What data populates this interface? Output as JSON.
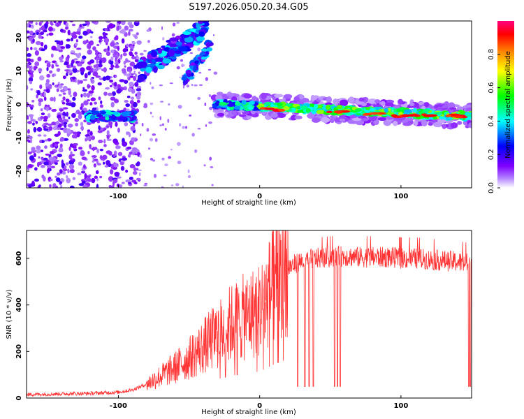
{
  "chart_data": [
    {
      "type": "heatmap",
      "title": "S197.2026.050.20.34.G05",
      "xlabel": "Height of straight line (km)",
      "ylabel": "Frequency (Hz)",
      "xlim": [
        -165,
        150
      ],
      "ylim": [
        -25,
        25
      ],
      "xticks": [
        -100,
        0,
        100
      ],
      "yticks": [
        -20,
        -10,
        0,
        10,
        20
      ],
      "xtick_labels": [
        "-100",
        "0",
        "100"
      ],
      "ytick_labels": [
        "-20",
        "-10",
        "0",
        "10",
        "20"
      ],
      "colorbar": {
        "label": "Normalized spectral amplitude",
        "range": [
          0,
          1
        ],
        "ticks": [
          0.0,
          0.2,
          0.4,
          0.6,
          0.8
        ],
        "tick_labels": [
          "0.0",
          "0.2",
          "0.4",
          "0.6",
          "0.8"
        ],
        "colors": [
          "#ffffff",
          "#8000ff",
          "#0000ff",
          "#00ffff",
          "#00ff00",
          "#ffff00",
          "#ff8000",
          "#ff0000",
          "#ff0080"
        ]
      },
      "features": [
        {
          "name": "low-height band",
          "x_range": [
            -122,
            -88
          ],
          "frequency": -3.5
        },
        {
          "name": "main band",
          "x_range": [
            -32,
            150
          ],
          "frequency": [
            0,
            -3.5
          ]
        },
        {
          "name": "upper diagonal streak",
          "x_range": [
            -85,
            -38
          ],
          "frequency": [
            10,
            23
          ]
        }
      ]
    },
    {
      "type": "line",
      "xlabel": "Height of straight line (km)",
      "ylabel": "SNR (10 * v/v)",
      "xlim": [
        -165,
        150
      ],
      "ylim": [
        0,
        720
      ],
      "xticks": [
        -100,
        0,
        100
      ],
      "yticks": [
        0,
        200,
        400,
        600
      ],
      "xtick_labels": [
        "-100",
        "0",
        "100"
      ],
      "ytick_labels": [
        "0",
        "200",
        "400",
        "600"
      ],
      "series": [
        {
          "name": "SNR",
          "color": "#ff3333",
          "x": [
            -165,
            -140,
            -120,
            -100,
            -90,
            -80,
            -70,
            -60,
            -50,
            -40,
            -30,
            -20,
            -10,
            0,
            10,
            20,
            30,
            40,
            50,
            60,
            70,
            80,
            90,
            100,
            110,
            120,
            130,
            140,
            150
          ],
          "y": [
            15,
            18,
            20,
            25,
            35,
            60,
            95,
            130,
            170,
            220,
            270,
            320,
            350,
            380,
            480,
            560,
            590,
            600,
            605,
            610,
            605,
            605,
            605,
            600,
            600,
            595,
            590,
            585,
            575
          ],
          "dropouts": [
            27,
            32,
            35,
            38,
            53,
            55,
            57,
            148,
            149
          ]
        }
      ]
    }
  ]
}
